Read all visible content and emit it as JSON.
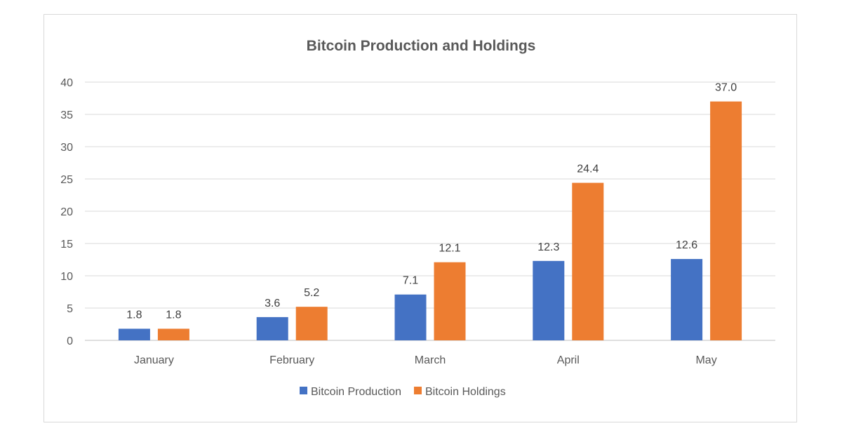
{
  "chart_data": {
    "type": "bar",
    "title": "Bitcoin Production and Holdings",
    "xlabel": "",
    "ylabel": "",
    "categories": [
      "January",
      "February",
      "March",
      "April",
      "May"
    ],
    "series": [
      {
        "name": "Bitcoin Production",
        "color": "#4472C4",
        "values": [
          1.8,
          3.6,
          7.1,
          12.3,
          12.6
        ],
        "labels": [
          "1.8",
          "3.6",
          "7.1",
          "12.3",
          "12.6"
        ]
      },
      {
        "name": "Bitcoin Holdings",
        "color": "#ED7D31",
        "values": [
          1.8,
          5.2,
          12.1,
          24.4,
          37.0
        ],
        "labels": [
          "1.8",
          "5.2",
          "12.1",
          "24.4",
          "37.0"
        ]
      }
    ],
    "ylim": [
      0,
      40
    ],
    "yticks": [
      0,
      5,
      10,
      15,
      20,
      25,
      30,
      35,
      40
    ],
    "grid": true,
    "legend_position": "bottom"
  }
}
